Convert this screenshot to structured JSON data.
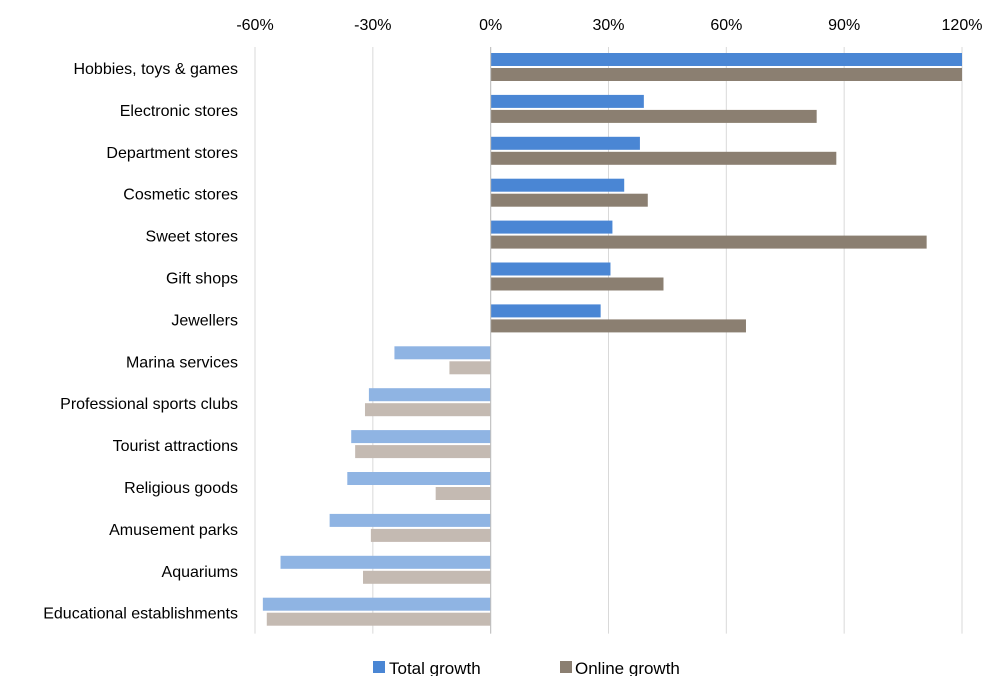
{
  "chart_data": {
    "type": "bar",
    "orientation": "horizontal",
    "title": "",
    "xlabel": "",
    "ylabel": "",
    "xlim": [
      -60,
      120
    ],
    "x_ticks": [
      -60,
      -30,
      0,
      30,
      60,
      90,
      120
    ],
    "x_tick_labels": [
      "-60%",
      "-30%",
      "0%",
      "30%",
      "60%",
      "90%",
      "120%"
    ],
    "grid": "vertical",
    "legend_position": "bottom",
    "categories": [
      "Hobbies, toys & games",
      "Electronic stores",
      "Department stores",
      "Cosmetic stores",
      "Sweet stores",
      "Gift shops",
      "Jewellers",
      "Marina services",
      "Professional sports clubs",
      "Tourist attractions",
      "Religious goods",
      "Amusement parks",
      "Aquariums",
      "Educational establishments"
    ],
    "series": [
      {
        "name": "Total growth",
        "color": "#4a86d4",
        "negative_color": "#8fb4e3",
        "values": [
          120,
          39,
          38,
          34,
          31,
          30.5,
          28,
          -24.5,
          -31,
          -35.5,
          -36.5,
          -41,
          -53.5,
          -58
        ]
      },
      {
        "name": "Online growth",
        "color": "#8b7f71",
        "negative_color": "#c4bab2",
        "values": [
          120,
          83,
          88,
          40,
          111,
          44,
          65,
          -10.5,
          -32,
          -34.5,
          -14,
          -30.5,
          -32.5,
          -57
        ]
      }
    ]
  }
}
